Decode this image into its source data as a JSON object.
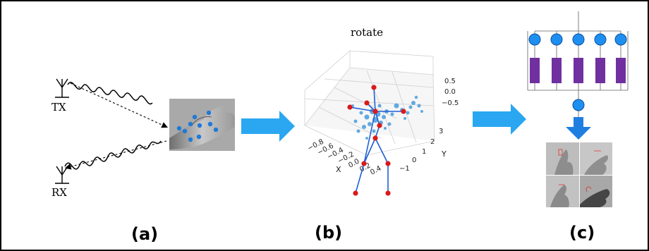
{
  "panels": {
    "a": {
      "label": "(a)",
      "tx_label": "TX",
      "rx_label": "RX"
    },
    "b": {
      "label": "(b)",
      "title": "rotate",
      "z_ticks": [
        "0.5",
        "0.0",
        "−0.5"
      ],
      "y_ticks": [
        "3",
        "2",
        "1",
        "0",
        "−1"
      ],
      "y_axis_label": "Y",
      "x_ticks": [
        "−0.8",
        "−0.6",
        "−0.4",
        "−0.2",
        "0.0",
        "0.2",
        "0.4"
      ],
      "x_axis_label": "X"
    },
    "c": {
      "label": "(c)",
      "lstm_units": 5
    }
  },
  "colors": {
    "arrow": "#2aa7f0",
    "skeleton_line": "#1f5fd6",
    "joint": "#d91a1a",
    "lstm_cell": "#7030a0",
    "node": "#1e8ff0",
    "node_stroke": "#0b4f9c",
    "keypoint": "#2079d6"
  },
  "icons": [
    "antenna-icon",
    "wave-icon",
    "hand-photo",
    "gesture-photos"
  ]
}
